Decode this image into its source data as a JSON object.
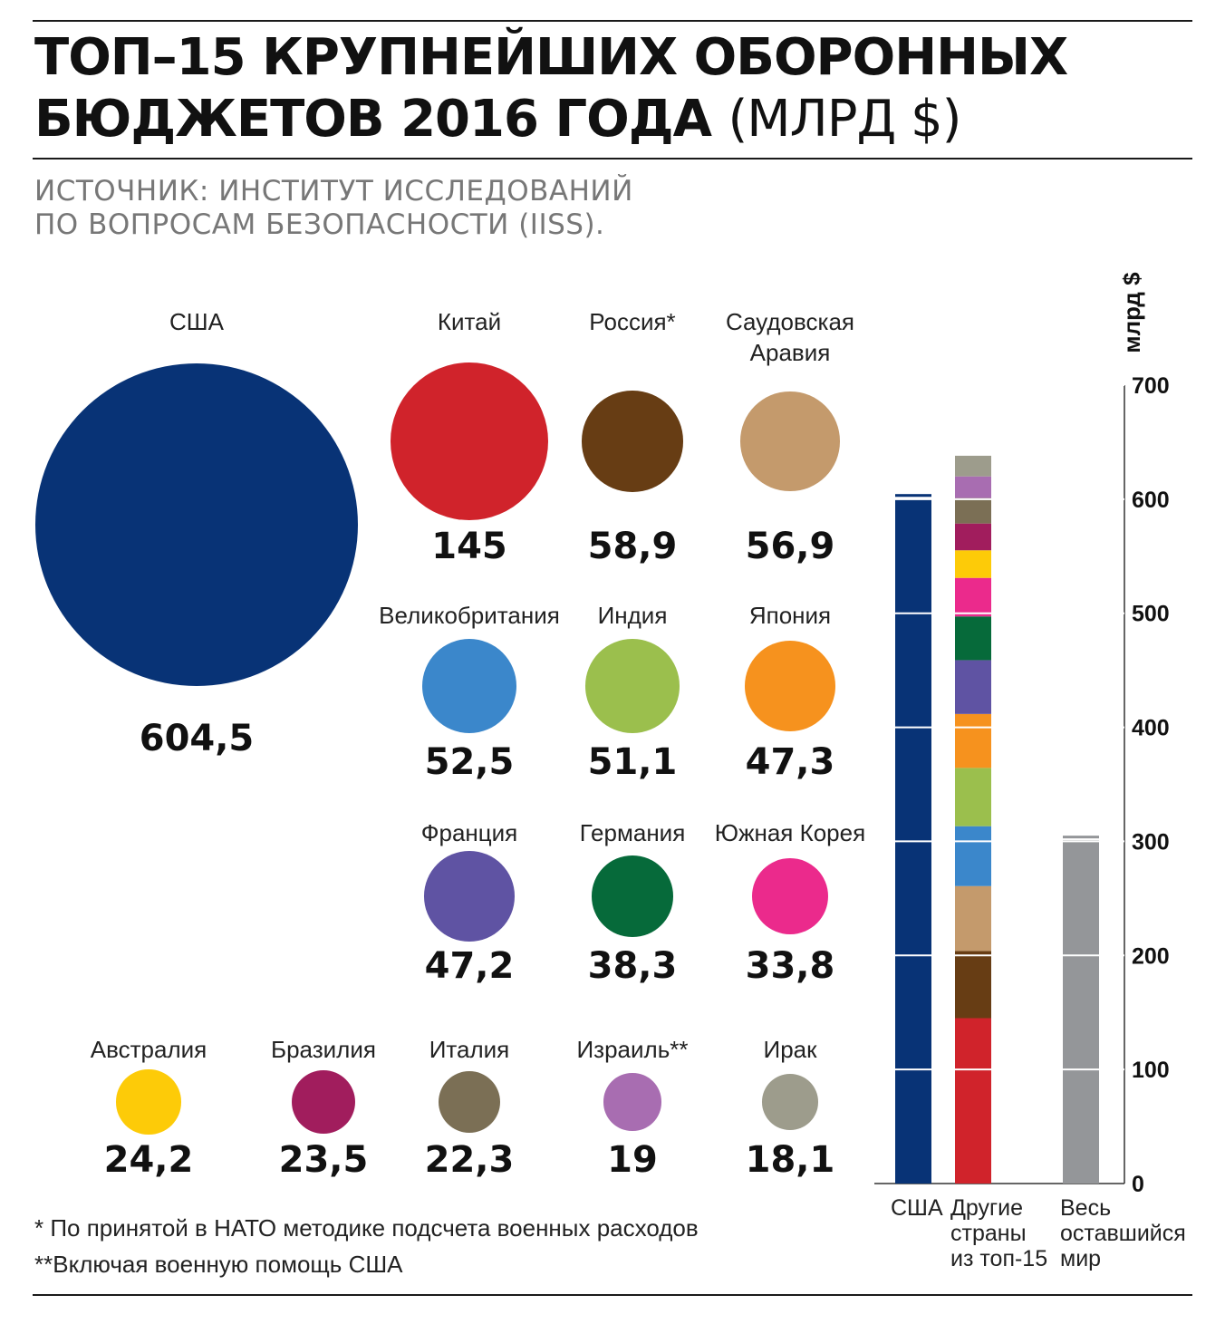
{
  "header": {
    "title_line1": "ТОП–15 КРУПНЕЙШИХ ОБОРОННЫХ",
    "title_line2": "БЮДЖЕТОВ 2016 ГОДА",
    "title_unit": "(МЛРД $)",
    "source_line1": "ИСТОЧНИК: ИНСТИТУТ ИССЛЕДОВАНИЙ",
    "source_line2": "ПО ВОПРОСАМ БЕЗОПАСНОСТИ (IISS)."
  },
  "footnotes": {
    "nato": "* По принятой в НАТО методике подсчета военных расходов",
    "aid": "**Включая военную помощь США"
  },
  "chart_data": [
    {
      "type": "bubble",
      "title": "ТОП–15 КРУПНЕЙШИХ ОБОРОННЫХ БЮДЖЕТОВ 2016 ГОДА (МЛРД $)",
      "unit": "млрд $",
      "countries": [
        {
          "name": "США",
          "value": 604.5,
          "label": "604,5",
          "color": "#083376"
        },
        {
          "name": "Китай",
          "value": 145,
          "label": "145",
          "color": "#d0232b"
        },
        {
          "name": "Россия*",
          "value": 58.9,
          "label": "58,9",
          "color": "#673d14"
        },
        {
          "name": "Саудовская Аравия",
          "value": 56.9,
          "label": "56,9",
          "color": "#c49a6c"
        },
        {
          "name": "Великобритания",
          "value": 52.5,
          "label": "52,5",
          "color": "#3b87cb"
        },
        {
          "name": "Индия",
          "value": 51.1,
          "label": "51,1",
          "color": "#9bbf4d"
        },
        {
          "name": "Япония",
          "value": 47.3,
          "label": "47,3",
          "color": "#f6921e"
        },
        {
          "name": "Франция",
          "value": 47.2,
          "label": "47,2",
          "color": "#5f53a3"
        },
        {
          "name": "Германия",
          "value": 38.3,
          "label": "38,3",
          "color": "#066a3a"
        },
        {
          "name": "Южная Корея",
          "value": 33.8,
          "label": "33,8",
          "color": "#eb2a8c"
        },
        {
          "name": "Австралия",
          "value": 24.2,
          "label": "24,2",
          "color": "#fdcb08"
        },
        {
          "name": "Бразилия",
          "value": 23.5,
          "label": "23,5",
          "color": "#a11d5d"
        },
        {
          "name": "Италия",
          "value": 22.3,
          "label": "22,3",
          "color": "#7b6f55"
        },
        {
          "name": "Израиль**",
          "value": 19,
          "label": "19",
          "color": "#a86db1"
        },
        {
          "name": "Ирак",
          "value": 18.1,
          "label": "18,1",
          "color": "#9d9c8c"
        }
      ]
    },
    {
      "type": "stacked-bar",
      "ylabel": "млрд $",
      "ylim": [
        0,
        700
      ],
      "yticks": [
        0,
        100,
        200,
        300,
        400,
        500,
        600,
        700
      ],
      "grid_step": 100,
      "bars": [
        {
          "label": "США",
          "kind": "single",
          "value": 604.5,
          "color": "#083376"
        },
        {
          "label": "Другие страны из топ-15",
          "kind": "stack",
          "total": 638.1
        },
        {
          "label": "Весь оставшийся мир",
          "kind": "single",
          "value": 305,
          "color": "#949699"
        }
      ]
    }
  ]
}
